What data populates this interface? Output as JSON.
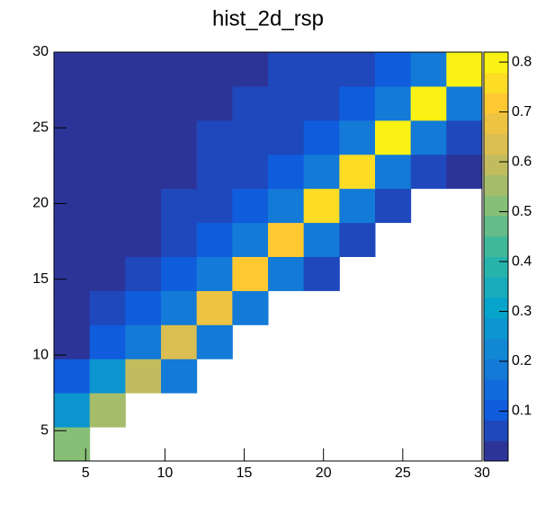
{
  "chart_data": {
    "type": "heatmap",
    "title": "hist_2d_rsp",
    "xbins": [
      3,
      5.25,
      7.5,
      9.75,
      12,
      14.25,
      16.5,
      18.75,
      21,
      23.25,
      25.5,
      27.75,
      30
    ],
    "ybins": [
      3,
      5.25,
      7.5,
      9.75,
      12,
      14.25,
      16.5,
      18.75,
      21,
      23.25,
      25.5,
      27.75,
      30
    ],
    "z": [
      [
        0.5,
        null,
        null,
        null,
        null,
        null,
        null,
        null,
        null,
        null,
        null,
        null
      ],
      [
        0.25,
        0.55,
        null,
        null,
        null,
        null,
        null,
        null,
        null,
        null,
        null,
        null
      ],
      [
        0.1,
        0.25,
        0.6,
        0.2,
        null,
        null,
        null,
        null,
        null,
        null,
        null,
        null
      ],
      [
        0.01,
        0.1,
        0.2,
        0.65,
        0.2,
        null,
        null,
        null,
        null,
        null,
        null,
        null
      ],
      [
        0.01,
        0.06,
        0.1,
        0.2,
        0.68,
        0.2,
        null,
        null,
        null,
        null,
        null,
        null
      ],
      [
        0.01,
        0.01,
        0.06,
        0.1,
        0.2,
        0.7,
        0.2,
        0.07,
        null,
        null,
        null,
        null
      ],
      [
        0.01,
        0.01,
        0.01,
        0.06,
        0.1,
        0.2,
        0.72,
        0.2,
        0.07,
        null,
        null,
        null
      ],
      [
        0.01,
        0.01,
        0.01,
        0.06,
        0.06,
        0.1,
        0.2,
        0.74,
        0.2,
        0.07,
        null,
        null
      ],
      [
        0.01,
        0.01,
        0.01,
        0.01,
        0.06,
        0.06,
        0.1,
        0.2,
        0.76,
        0.2,
        0.07,
        0.03
      ],
      [
        0.01,
        0.01,
        0.01,
        0.01,
        0.06,
        0.06,
        0.06,
        0.1,
        0.2,
        0.78,
        0.2,
        0.07
      ],
      [
        0.01,
        0.01,
        0.01,
        0.01,
        0.01,
        0.06,
        0.06,
        0.06,
        0.1,
        0.2,
        0.8,
        0.2
      ],
      [
        0.01,
        0.01,
        0.01,
        0.01,
        0.01,
        0.01,
        0.06,
        0.06,
        0.06,
        0.1,
        0.2,
        0.82
      ]
    ],
    "xlim": [
      3,
      30
    ],
    "ylim": [
      3,
      30
    ],
    "zlim": [
      0,
      0.82
    ],
    "xticks": [
      5,
      10,
      15,
      20,
      25,
      30
    ],
    "yticks": [
      5,
      10,
      15,
      20,
      25,
      30
    ],
    "zticks": [
      0.1,
      0.2,
      0.3,
      0.4,
      0.5,
      0.6,
      0.7,
      0.8
    ],
    "levels": 20,
    "colorscale": [
      "#352a87",
      "#0f5cdd",
      "#1481d6",
      "#06a4ca",
      "#2eb7a4",
      "#87bf77",
      "#d1bb59",
      "#fec832",
      "#f9fb0e"
    ]
  }
}
